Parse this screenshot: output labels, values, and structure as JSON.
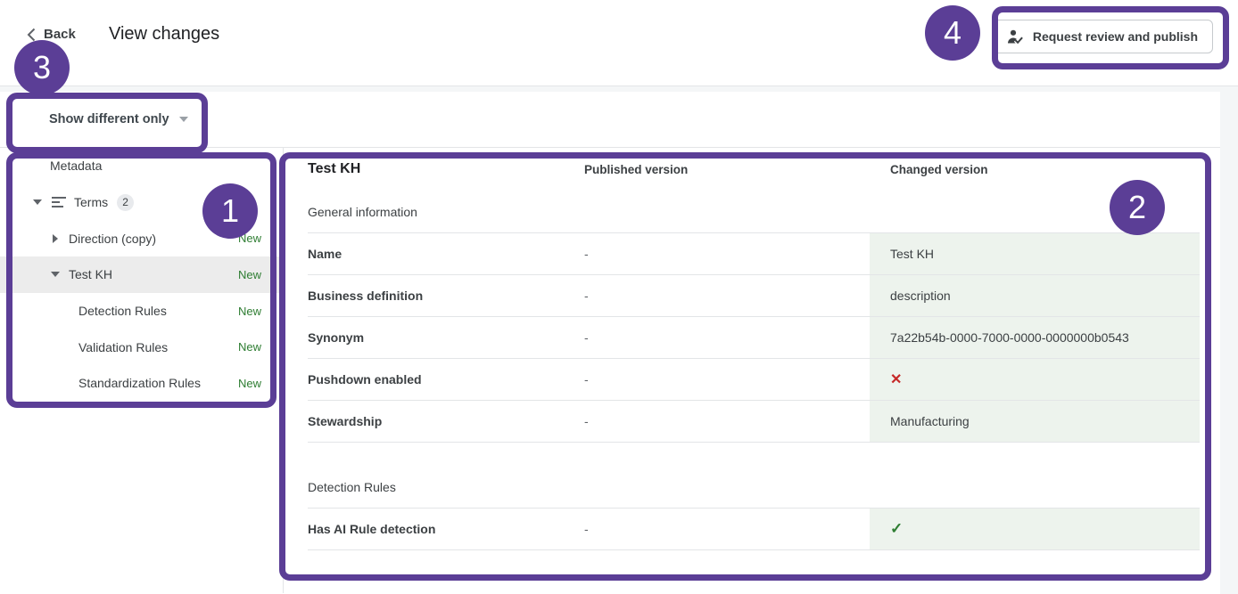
{
  "colors": {
    "annotation_purple": "#5b3e96",
    "new_green": "#2e7d32",
    "changed_cell_bg": "#edf3ed",
    "cross_red": "#c62828",
    "check_green": "#2e7d32"
  },
  "header": {
    "back": "Back",
    "title": "View changes",
    "publish_button": "Request review and publish"
  },
  "toolbar": {
    "filter": "Show different only"
  },
  "tree": {
    "items": [
      {
        "label": "Metadata",
        "indent": 1,
        "arrow": "none"
      },
      {
        "label": "Terms",
        "indent": 0,
        "arrow": "down",
        "icon": "terms-lines-icon",
        "badge": "2"
      },
      {
        "label": "Direction (copy)",
        "indent": 1,
        "arrow": "right",
        "tag": "New"
      },
      {
        "label": "Test KH",
        "indent": 1,
        "arrow": "down",
        "tag": "New",
        "selected": true
      },
      {
        "label": "Detection Rules",
        "indent": 2,
        "arrow": "none",
        "tag": "New"
      },
      {
        "label": "Validation Rules",
        "indent": 2,
        "arrow": "none",
        "tag": "New"
      },
      {
        "label": "Standardization Rules",
        "indent": 2,
        "arrow": "none",
        "tag": "New"
      }
    ]
  },
  "panel": {
    "title": "Test KH",
    "columns": {
      "published": "Published version",
      "changed": "Changed version"
    },
    "sections": [
      {
        "label": "General information",
        "rows": [
          {
            "label": "Name",
            "published": "-",
            "changed_type": "text",
            "changed": "Test KH"
          },
          {
            "label": "Business definition",
            "published": "-",
            "changed_type": "text",
            "changed": "description"
          },
          {
            "label": "Synonym",
            "published": "-",
            "changed_type": "text",
            "changed": "7a22b54b-0000-7000-0000-0000000b0543"
          },
          {
            "label": "Pushdown enabled",
            "published": "-",
            "changed_type": "cross",
            "changed": "✕"
          },
          {
            "label": "Stewardship",
            "published": "-",
            "changed_type": "text",
            "changed": "Manufacturing"
          }
        ]
      },
      {
        "label": "Detection Rules",
        "rows": [
          {
            "label": "Has AI Rule detection",
            "published": "-",
            "changed_type": "check",
            "changed": "✓"
          }
        ]
      }
    ]
  },
  "annotations": {
    "circles": [
      "1",
      "2",
      "3",
      "4"
    ]
  }
}
